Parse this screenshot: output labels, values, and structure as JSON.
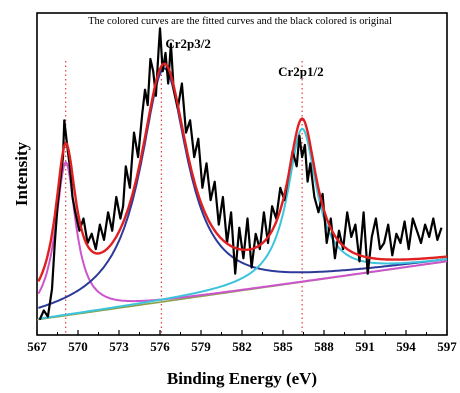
{
  "chart_data": {
    "type": "line",
    "title": "",
    "annotation": "The colored curves are the fitted curves and the black colored is original",
    "xlabel": "Binding Energy (eV)",
    "ylabel": "Intensity",
    "xlim": [
      567,
      597
    ],
    "ylim": [
      0,
      1.05
    ],
    "x_ticks": [
      567,
      570,
      573,
      576,
      579,
      582,
      585,
      588,
      591,
      594,
      597
    ],
    "y_ticks_shown": false,
    "grid": false,
    "reference_lines": [
      {
        "x": 569.1,
        "color": "#e04040",
        "style": "dotted"
      },
      {
        "x": 576.1,
        "color": "#e04040",
        "style": "dotted"
      },
      {
        "x": 586.4,
        "color": "#e04040",
        "style": "dotted"
      }
    ],
    "peak_labels": [
      {
        "text": "Cr2p3/2",
        "x": 576.1
      },
      {
        "text": "Cr2p1/2",
        "x": 586.4
      }
    ],
    "background": {
      "x": [
        567,
        597
      ],
      "y": [
        0.05,
        0.24
      ]
    },
    "components": [
      {
        "center": 569.1,
        "height": 0.5,
        "width": 0.9,
        "color": "#cc55cc"
      },
      {
        "center": 576.3,
        "height": 0.76,
        "width": 2.1,
        "color": "#2d3a9a"
      },
      {
        "center": 586.4,
        "height": 0.5,
        "width": 1.3,
        "color": "#3cc4dc"
      }
    ],
    "series": [
      {
        "role": "original",
        "color": "#000000",
        "x": [
          567.2,
          567.5,
          567.8,
          568.1,
          568.3,
          568.5,
          568.7,
          568.9,
          569.0,
          569.2,
          569.4,
          569.6,
          569.8,
          570.1,
          570.4,
          570.7,
          571.0,
          571.3,
          571.6,
          571.9,
          572.2,
          572.5,
          572.8,
          573.1,
          573.3,
          573.5,
          573.8,
          574.1,
          574.4,
          574.7,
          574.9,
          575.1,
          575.3,
          575.5,
          575.7,
          575.9,
          576.0,
          576.2,
          576.4,
          576.6,
          576.8,
          577.0,
          577.3,
          577.6,
          577.9,
          578.2,
          578.5,
          578.8,
          579.1,
          579.4,
          579.7,
          580.0,
          580.3,
          580.6,
          580.9,
          581.2,
          581.5,
          581.8,
          582.1,
          582.4,
          582.7,
          583.0,
          583.3,
          583.6,
          583.9,
          584.2,
          584.5,
          584.8,
          585.1,
          585.4,
          585.7,
          586.0,
          586.2,
          586.4,
          586.6,
          586.8,
          587.0,
          587.3,
          587.6,
          587.9,
          588.2,
          588.5,
          588.8,
          589.1,
          589.4,
          589.7,
          590.0,
          590.3,
          590.6,
          590.9,
          591.2,
          591.5,
          591.8,
          592.1,
          592.4,
          592.7,
          593.0,
          593.3,
          593.6,
          593.9,
          594.2,
          594.5,
          594.8,
          595.1,
          595.4,
          595.7,
          596.0,
          596.3,
          596.6
        ],
        "y": [
          0.05,
          0.08,
          0.06,
          0.15,
          0.3,
          0.42,
          0.5,
          0.58,
          0.7,
          0.62,
          0.55,
          0.45,
          0.4,
          0.34,
          0.38,
          0.3,
          0.33,
          0.28,
          0.36,
          0.31,
          0.4,
          0.34,
          0.45,
          0.38,
          0.42,
          0.55,
          0.48,
          0.66,
          0.58,
          0.72,
          0.8,
          0.75,
          0.9,
          0.86,
          0.78,
          0.93,
          1.0,
          0.86,
          0.92,
          0.82,
          0.95,
          0.8,
          0.74,
          0.82,
          0.66,
          0.7,
          0.58,
          0.64,
          0.48,
          0.56,
          0.44,
          0.5,
          0.36,
          0.45,
          0.3,
          0.4,
          0.2,
          0.35,
          0.25,
          0.38,
          0.22,
          0.33,
          0.28,
          0.4,
          0.3,
          0.42,
          0.38,
          0.48,
          0.44,
          0.52,
          0.6,
          0.55,
          0.65,
          0.58,
          0.62,
          0.5,
          0.56,
          0.45,
          0.4,
          0.46,
          0.3,
          0.38,
          0.25,
          0.34,
          0.28,
          0.4,
          0.32,
          0.36,
          0.24,
          0.4,
          0.2,
          0.32,
          0.38,
          0.28,
          0.3,
          0.36,
          0.26,
          0.33,
          0.3,
          0.37,
          0.28,
          0.38,
          0.34,
          0.3,
          0.36,
          0.32,
          0.38,
          0.31,
          0.35
        ]
      },
      {
        "role": "fitted-sum",
        "color": "#e02020"
      },
      {
        "role": "component-1",
        "color": "#cc55cc"
      },
      {
        "role": "component-2",
        "color": "#2d3a9a"
      },
      {
        "role": "component-3",
        "color": "#3cc4dc"
      },
      {
        "role": "background-line",
        "color": "#8aa04a"
      }
    ]
  }
}
